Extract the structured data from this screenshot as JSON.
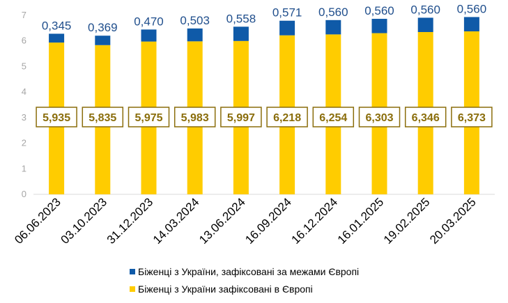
{
  "chart_data": {
    "type": "bar",
    "stacked": true,
    "categories": [
      "06.06.2023",
      "03.10.2023",
      "31.12.2023",
      "14.03.2024",
      "13.06.2024",
      "16.09.2024",
      "16.12.2024",
      "16.01.2025",
      "19.02.2025",
      "20.03.2025"
    ],
    "series": [
      {
        "name": "Біженці з України зафіксовані в Європі",
        "color": "#ffcc00",
        "values": [
          5.935,
          5.835,
          5.975,
          5.983,
          5.997,
          6.218,
          6.254,
          6.303,
          6.346,
          6.373
        ],
        "labels": [
          "5,935",
          "5,835",
          "5,975",
          "5,983",
          "5,997",
          "6,218",
          "6,254",
          "6,303",
          "6,346",
          "6,373"
        ]
      },
      {
        "name": "Біженці з України, зафіксовані за межами Європі",
        "color": "#0f5aa8",
        "values": [
          0.345,
          0.369,
          0.47,
          0.503,
          0.558,
          0.571,
          0.56,
          0.56,
          0.56,
          0.56
        ],
        "labels": [
          "0,345",
          "0,369",
          "0,470",
          "0,503",
          "0,558",
          "0,571",
          "0,560",
          "0,560",
          "0,560",
          "0,560"
        ]
      }
    ],
    "y_ticks": [
      "0",
      "1",
      "2",
      "3",
      "4",
      "5",
      "6",
      "7"
    ],
    "ylim": [
      0,
      7
    ],
    "label_colors": {
      "top": "#1f4e8c",
      "box": "#8a6d0b",
      "axis": "#a6a6a6"
    },
    "legend": {
      "position": "bottom",
      "items": [
        {
          "label": "Біженці з України, зафіксовані за межами Європі",
          "color": "#0f5aa8"
        },
        {
          "label": "Біженці з України зафіксовані в Європі",
          "color": "#ffcc00"
        }
      ]
    },
    "grid": false
  }
}
